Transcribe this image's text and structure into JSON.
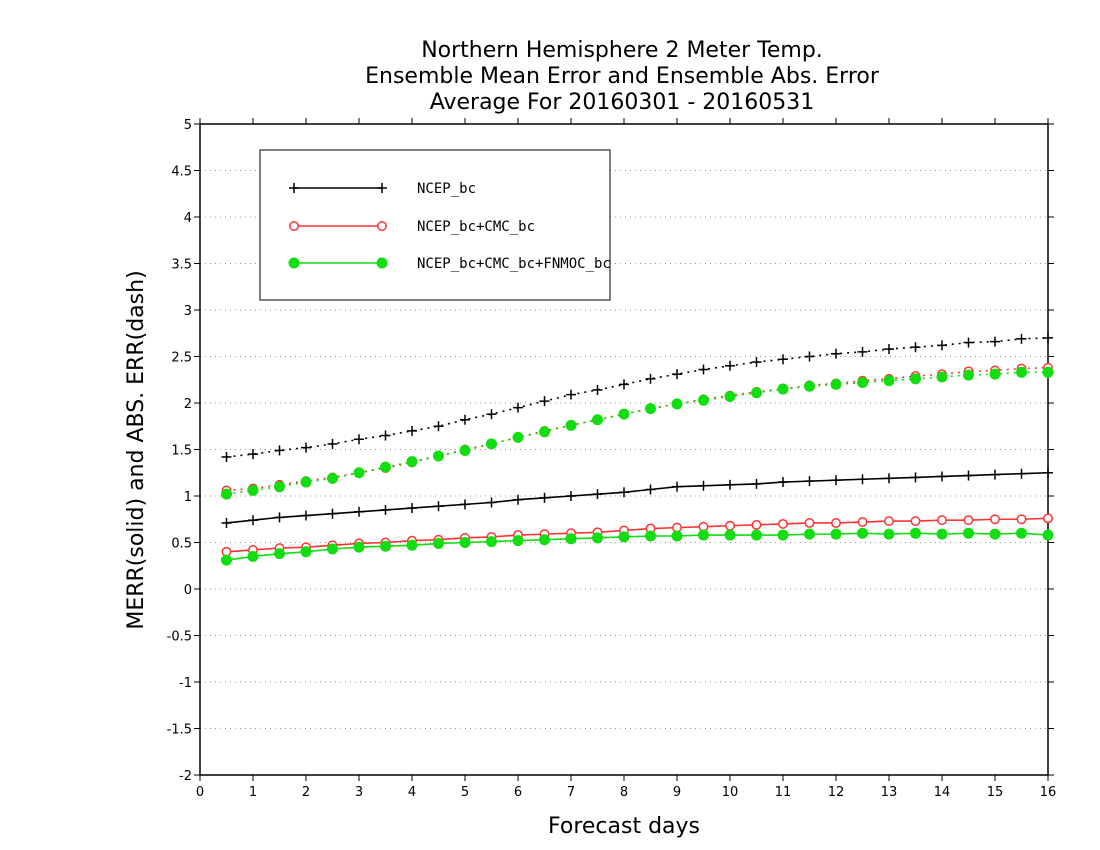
{
  "chart_data": {
    "type": "line",
    "title": [
      "Northern Hemisphere 2 Meter Temp.",
      "Ensemble Mean Error and Ensemble Abs. Error",
      "Average For 20160301 - 20160531"
    ],
    "xlabel": "Forecast days",
    "ylabel": "MERR(solid) and ABS. ERR(dash)",
    "xlim": [
      0,
      16
    ],
    "ylim": [
      -2,
      5
    ],
    "xticks": [
      0,
      1,
      2,
      3,
      4,
      5,
      6,
      7,
      8,
      9,
      10,
      11,
      12,
      13,
      14,
      15,
      16
    ],
    "yticks": [
      -2,
      -1.5,
      -1,
      -0.5,
      0,
      0.5,
      1,
      1.5,
      2,
      2.5,
      3,
      3.5,
      4,
      4.5,
      5
    ],
    "grid": "horizontal-dotted",
    "legend_position": "top-left",
    "x": [
      0.5,
      1,
      1.5,
      2,
      2.5,
      3,
      3.5,
      4,
      4.5,
      5,
      5.5,
      6,
      6.5,
      7,
      7.5,
      8,
      8.5,
      9,
      9.5,
      10,
      10.5,
      11,
      11.5,
      12,
      12.5,
      13,
      13.5,
      14,
      14.5,
      15,
      15.5,
      16
    ],
    "series": [
      {
        "name": "NCEP_bc",
        "color": "#000000",
        "marker": "plus",
        "merr": [
          0.71,
          0.74,
          0.77,
          0.79,
          0.81,
          0.83,
          0.85,
          0.87,
          0.89,
          0.91,
          0.93,
          0.96,
          0.98,
          1.0,
          1.02,
          1.04,
          1.07,
          1.1,
          1.11,
          1.12,
          1.13,
          1.15,
          1.16,
          1.17,
          1.18,
          1.19,
          1.2,
          1.21,
          1.22,
          1.23,
          1.24,
          1.25
        ],
        "abs_err": [
          1.42,
          1.45,
          1.49,
          1.52,
          1.56,
          1.61,
          1.65,
          1.7,
          1.75,
          1.82,
          1.88,
          1.95,
          2.02,
          2.09,
          2.14,
          2.2,
          2.26,
          2.31,
          2.36,
          2.4,
          2.44,
          2.47,
          2.5,
          2.53,
          2.55,
          2.58,
          2.6,
          2.62,
          2.65,
          2.66,
          2.69,
          2.7
        ]
      },
      {
        "name": "NCEP_bc+CMC_bc",
        "color": "#ff3333",
        "marker": "open-circle",
        "merr": [
          0.4,
          0.42,
          0.44,
          0.45,
          0.47,
          0.49,
          0.5,
          0.52,
          0.53,
          0.55,
          0.56,
          0.58,
          0.59,
          0.6,
          0.61,
          0.63,
          0.65,
          0.66,
          0.67,
          0.68,
          0.69,
          0.7,
          0.71,
          0.71,
          0.72,
          0.73,
          0.73,
          0.74,
          0.74,
          0.75,
          0.75,
          0.76
        ],
        "abs_err": [
          1.06,
          1.08,
          1.12,
          1.16,
          1.2,
          1.25,
          1.3,
          1.36,
          1.43,
          1.5,
          1.56,
          1.63,
          1.7,
          1.76,
          1.82,
          1.88,
          1.94,
          1.99,
          2.04,
          2.08,
          2.12,
          2.15,
          2.19,
          2.21,
          2.24,
          2.26,
          2.29,
          2.31,
          2.34,
          2.35,
          2.37,
          2.38
        ]
      },
      {
        "name": "NCEP_bc+CMC_bc+FNMOC_bc",
        "color": "#11dd11",
        "marker": "filled-circle",
        "merr": [
          0.31,
          0.35,
          0.38,
          0.4,
          0.43,
          0.45,
          0.46,
          0.47,
          0.49,
          0.5,
          0.51,
          0.52,
          0.53,
          0.54,
          0.55,
          0.56,
          0.57,
          0.57,
          0.58,
          0.58,
          0.58,
          0.58,
          0.59,
          0.59,
          0.6,
          0.59,
          0.6,
          0.59,
          0.6,
          0.59,
          0.6,
          0.58
        ],
        "abs_err": [
          1.02,
          1.06,
          1.1,
          1.15,
          1.19,
          1.25,
          1.31,
          1.37,
          1.43,
          1.49,
          1.56,
          1.63,
          1.69,
          1.76,
          1.82,
          1.88,
          1.94,
          1.99,
          2.03,
          2.07,
          2.11,
          2.15,
          2.18,
          2.2,
          2.22,
          2.24,
          2.26,
          2.28,
          2.3,
          2.31,
          2.33,
          2.33
        ]
      }
    ]
  }
}
